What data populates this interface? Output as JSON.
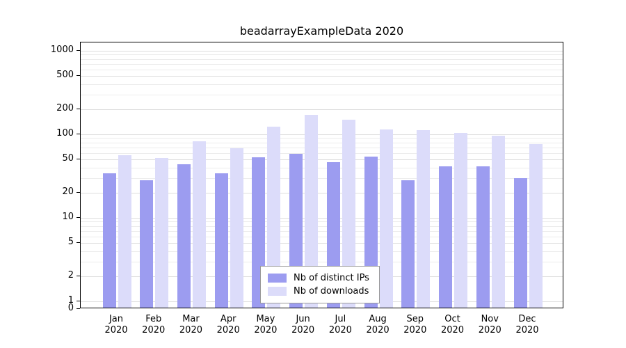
{
  "title": "beadarrayExampleData 2020",
  "colors": {
    "ips": "#9c9cf0",
    "downloads": "#dcdcfa",
    "grid_major": "#dddddd",
    "grid_minor": "#ececec",
    "axis": "#000000",
    "legend_border": "#999999"
  },
  "legend": {
    "items": [
      {
        "label": "Nb of distinct IPs",
        "key": "ips"
      },
      {
        "label": "Nb of downloads",
        "key": "downloads"
      }
    ]
  },
  "y_axis": {
    "tick_labels": [
      "1000",
      "500",
      "200",
      "100",
      "50",
      "20",
      "10",
      "5",
      "2",
      "1",
      "0"
    ]
  },
  "x_axis": {
    "year_label": "2020"
  },
  "chart_data": {
    "type": "bar",
    "title": "beadarrayExampleData 2020",
    "categories": [
      "Jan",
      "Feb",
      "Mar",
      "Apr",
      "May",
      "Jun",
      "Jul",
      "Aug",
      "Sep",
      "Oct",
      "Nov",
      "Dec"
    ],
    "x_tick_second_line": "2020",
    "series": [
      {
        "name": "Nb of distinct IPs",
        "values": [
          33,
          27,
          42,
          33,
          51,
          56,
          45,
          52,
          27,
          40,
          40,
          29
        ]
      },
      {
        "name": "Nb of downloads",
        "values": [
          54,
          50,
          80,
          65,
          120,
          165,
          145,
          110,
          108,
          100,
          92,
          74
        ]
      }
    ],
    "yscale": "log",
    "yticks": [
      0,
      1,
      2,
      5,
      10,
      20,
      50,
      100,
      200,
      500,
      1000
    ],
    "ylim": [
      0,
      1258
    ],
    "grid": true,
    "legend_position": "inside-bottom-center"
  }
}
